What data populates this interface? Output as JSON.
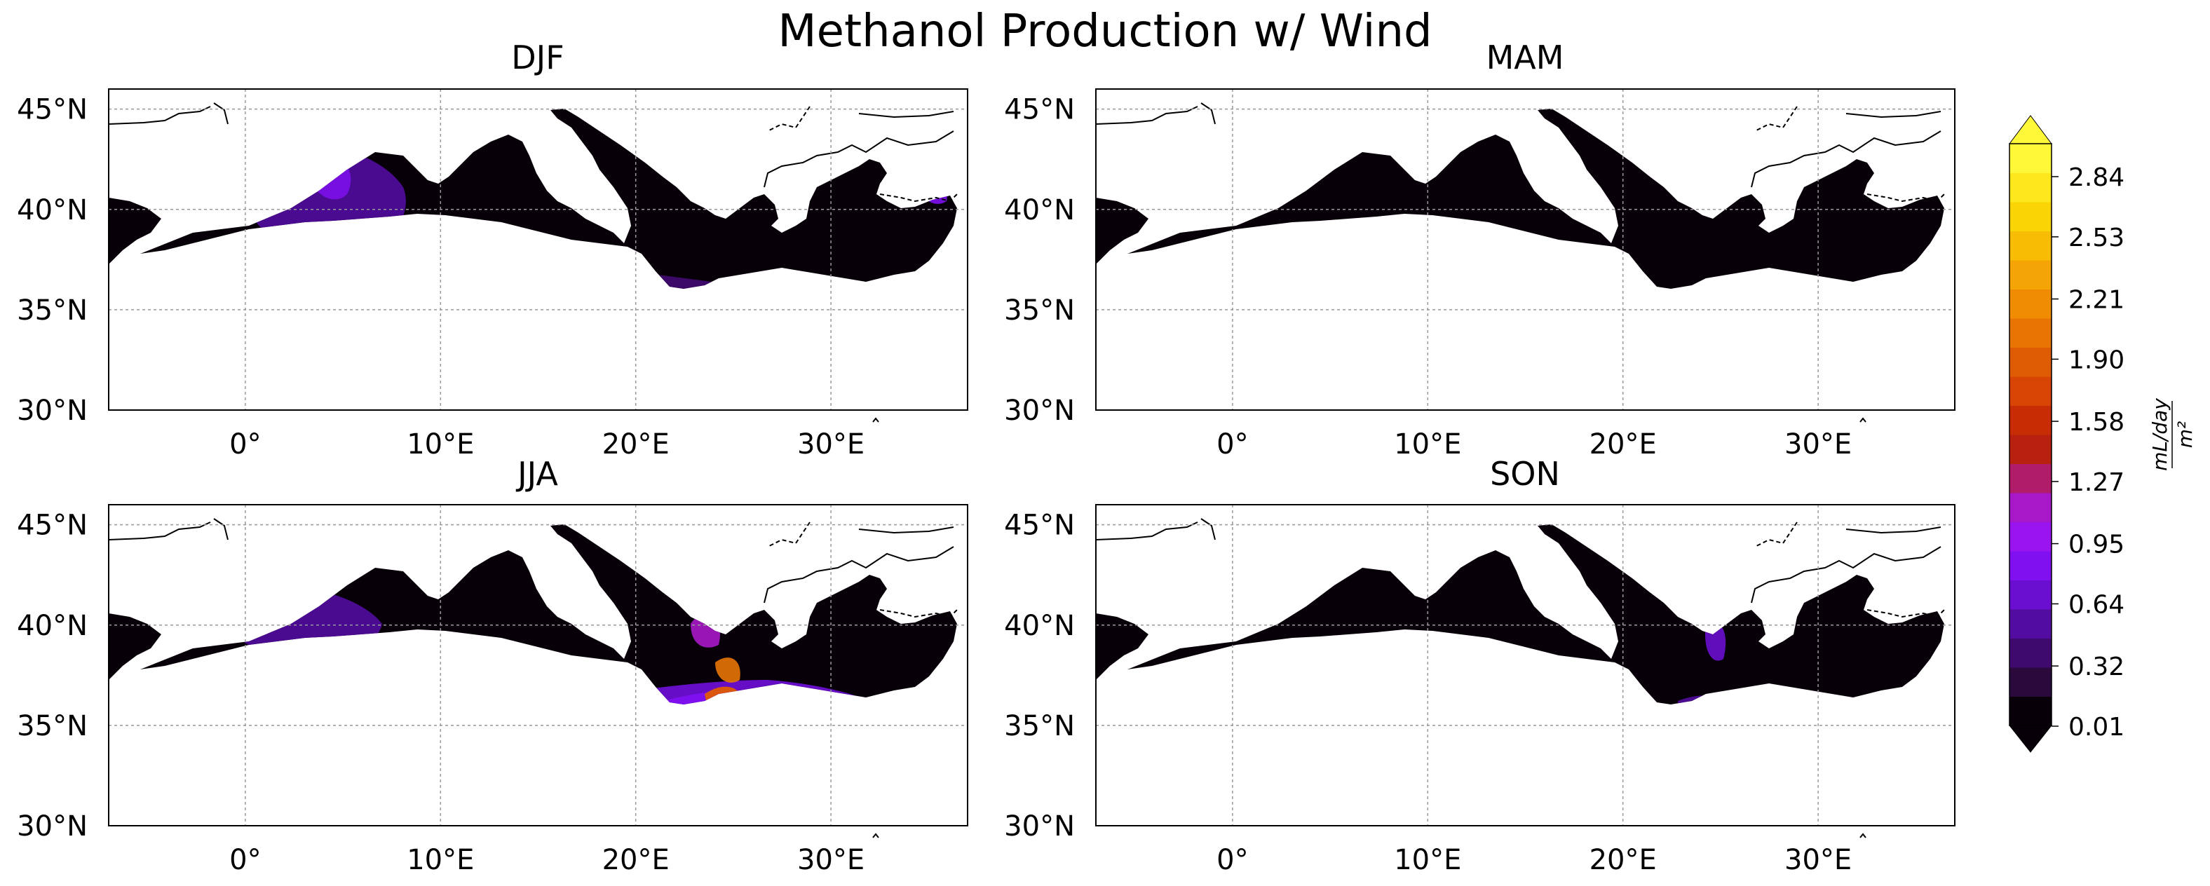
{
  "title": "Methanol Production w/ Wind",
  "panels": [
    {
      "label": "DJF",
      "key": "djf"
    },
    {
      "label": "MAM",
      "key": "mam"
    },
    {
      "label": "JJA",
      "key": "jja"
    },
    {
      "label": "SON",
      "key": "son"
    }
  ],
  "axes": {
    "lat_ticks": [
      "45°N",
      "40°N",
      "35°N",
      "30°N"
    ],
    "lon_ticks": [
      "0°",
      "10°E",
      "20°E",
      "30°E"
    ],
    "lat_values": [
      45,
      40,
      35,
      30
    ],
    "lon_values": [
      0,
      10,
      20,
      30
    ],
    "lon_range": [
      -7,
      37
    ],
    "lat_range": [
      30,
      46
    ],
    "gridlines": true
  },
  "colorbar": {
    "unit_numerator": "mL/day",
    "unit_denominator": "m²",
    "tick_labels": [
      "2.84",
      "2.53",
      "2.21",
      "1.90",
      "1.58",
      "1.27",
      "0.95",
      "0.64",
      "0.32",
      "0.01"
    ],
    "levels": [
      0.01,
      0.32,
      0.64,
      0.95,
      1.27,
      1.58,
      1.9,
      2.21,
      2.53,
      2.84
    ],
    "extend": "both",
    "colors": [
      "#080008",
      "#2a0a3d",
      "#3f0a6e",
      "#520ca0",
      "#6a0fd0",
      "#8010f0",
      "#9a14f0",
      "#a818c8",
      "#b01c6a",
      "#b82010",
      "#c82c04",
      "#d84404",
      "#e05c04",
      "#e87404",
      "#f08c04",
      "#f4a404",
      "#f8bc04",
      "#fad404",
      "#fce81c",
      "#fef838"
    ]
  }
}
